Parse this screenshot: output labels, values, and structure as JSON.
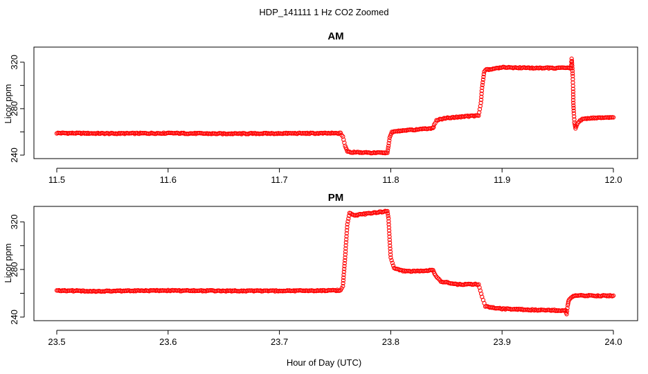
{
  "figure": {
    "title": "HDP_141111  1 Hz CO2 Zoomed",
    "xlabel": "Hour of Day (UTC)"
  },
  "chart_data": [
    {
      "type": "scatter",
      "title": "AM",
      "xlabel": "",
      "ylabel": "Licor ppm",
      "xlim": [
        11.5,
        12.0
      ],
      "ylim": [
        237,
        333
      ],
      "x_ticks": [
        11.5,
        11.6,
        11.7,
        11.8,
        11.9,
        12.0
      ],
      "x_tick_labels": [
        "11.5",
        "11.6",
        "11.7",
        "11.8",
        "11.9",
        "12.0"
      ],
      "y_ticks": [
        240,
        260,
        280,
        300,
        320
      ],
      "y_tick_labels": [
        "240",
        "",
        "280",
        "",
        "320"
      ],
      "marker": "open-circle",
      "color": "#ff0000",
      "series": [
        {
          "points": [
            [
              11.5,
              259
            ],
            [
              11.55,
              258.6
            ],
            [
              11.6,
              258.9
            ],
            [
              11.65,
              258.4
            ],
            [
              11.7,
              258.7
            ],
            [
              11.755,
              258.8
            ],
            [
              11.757,
              256
            ],
            [
              11.759,
              248
            ],
            [
              11.761,
              243.5
            ],
            [
              11.765,
              242.5
            ],
            [
              11.78,
              242
            ],
            [
              11.797,
              242
            ],
            [
              11.798,
              248
            ],
            [
              11.799,
              255
            ],
            [
              11.801,
              260
            ],
            [
              11.81,
              261
            ],
            [
              11.83,
              262.5
            ],
            [
              11.838,
              263
            ],
            [
              11.839,
              266
            ],
            [
              11.841,
              270
            ],
            [
              11.85,
              272
            ],
            [
              11.87,
              273.5
            ],
            [
              11.879,
              274
            ],
            [
              11.881,
              285
            ],
            [
              11.882,
              298
            ],
            [
              11.884,
              312
            ],
            [
              11.886,
              313.5
            ],
            [
              11.9,
              315.5
            ],
            [
              11.93,
              315
            ],
            [
              11.962,
              315
            ],
            [
              11.9625,
              323
            ],
            [
              11.963,
              317
            ],
            [
              11.9635,
              308
            ],
            [
              11.9638,
              297
            ],
            [
              11.964,
              285
            ],
            [
              11.9645,
              276
            ],
            [
              11.965,
              268
            ],
            [
              11.966,
              263
            ],
            [
              11.968,
              268
            ],
            [
              11.972,
              271
            ],
            [
              11.98,
              272
            ],
            [
              12.0,
              272.5
            ]
          ]
        }
      ]
    },
    {
      "type": "scatter",
      "title": "PM",
      "xlabel": "Hour of Day (UTC)",
      "ylabel": "Licor ppm",
      "xlim": [
        23.5,
        24.0
      ],
      "ylim": [
        237,
        333
      ],
      "x_ticks": [
        23.5,
        23.6,
        23.7,
        23.8,
        23.9,
        24.0
      ],
      "x_tick_labels": [
        "23.5",
        "23.6",
        "23.7",
        "23.8",
        "23.9",
        "24.0"
      ],
      "y_ticks": [
        240,
        260,
        280,
        300,
        320
      ],
      "y_tick_labels": [
        "240",
        "",
        "280",
        "",
        "320"
      ],
      "marker": "open-circle",
      "color": "#ff0000",
      "series": [
        {
          "points": [
            [
              23.5,
              262.5
            ],
            [
              23.53,
              261.7
            ],
            [
              23.56,
              262
            ],
            [
              23.6,
              262.3
            ],
            [
              23.65,
              262
            ],
            [
              23.7,
              262
            ],
            [
              23.755,
              262.5
            ],
            [
              23.757,
              266
            ],
            [
              23.759,
              290
            ],
            [
              23.761,
              318
            ],
            [
              23.763,
              327.5
            ],
            [
              23.767,
              325.5
            ],
            [
              23.78,
              327
            ],
            [
              23.797,
              329
            ],
            [
              23.798,
              323
            ],
            [
              23.799,
              305
            ],
            [
              23.8,
              290
            ],
            [
              23.803,
              281
            ],
            [
              23.81,
              279
            ],
            [
              23.82,
              278.5
            ],
            [
              23.838,
              279.5
            ],
            [
              23.84,
              275
            ],
            [
              23.845,
              270
            ],
            [
              23.86,
              267.5
            ],
            [
              23.879,
              267.5
            ],
            [
              23.882,
              257
            ],
            [
              23.885,
              249
            ],
            [
              23.9,
              247
            ],
            [
              23.93,
              246
            ],
            [
              23.957,
              245.5
            ],
            [
              23.958,
              242.5
            ],
            [
              23.959,
              250
            ],
            [
              23.96,
              254.5
            ],
            [
              23.965,
              258
            ],
            [
              23.98,
              258
            ],
            [
              24.0,
              258
            ]
          ]
        }
      ]
    }
  ]
}
